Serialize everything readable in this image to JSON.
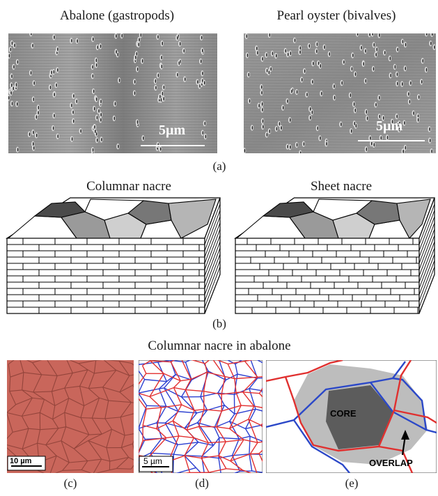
{
  "panel_a": {
    "left_title": "Abalone (gastropods)",
    "right_title": "Pearl oyster (bivalves)",
    "left_scale": "5µm",
    "right_scale": "5µm",
    "label": "(a)"
  },
  "panel_b": {
    "left_title": "Columnar nacre",
    "right_title": "Sheet nacre",
    "label": "(b)"
  },
  "section_title": "Columnar nacre in abalone",
  "panel_c": {
    "scale": "10 µm",
    "label": "(c)",
    "color": "#c8655a"
  },
  "panel_d": {
    "scale": "5 µm",
    "label": "(d)",
    "colors": [
      "#2b3fd0",
      "#e23030"
    ]
  },
  "panel_e": {
    "core_text": "CORE",
    "overlap_text": "OVERLAP",
    "label": "(e)",
    "colors": {
      "core": "#5c5c5c",
      "overlap": "#bdbdbd",
      "blue": "#2b48c8",
      "red": "#e0302f"
    }
  }
}
